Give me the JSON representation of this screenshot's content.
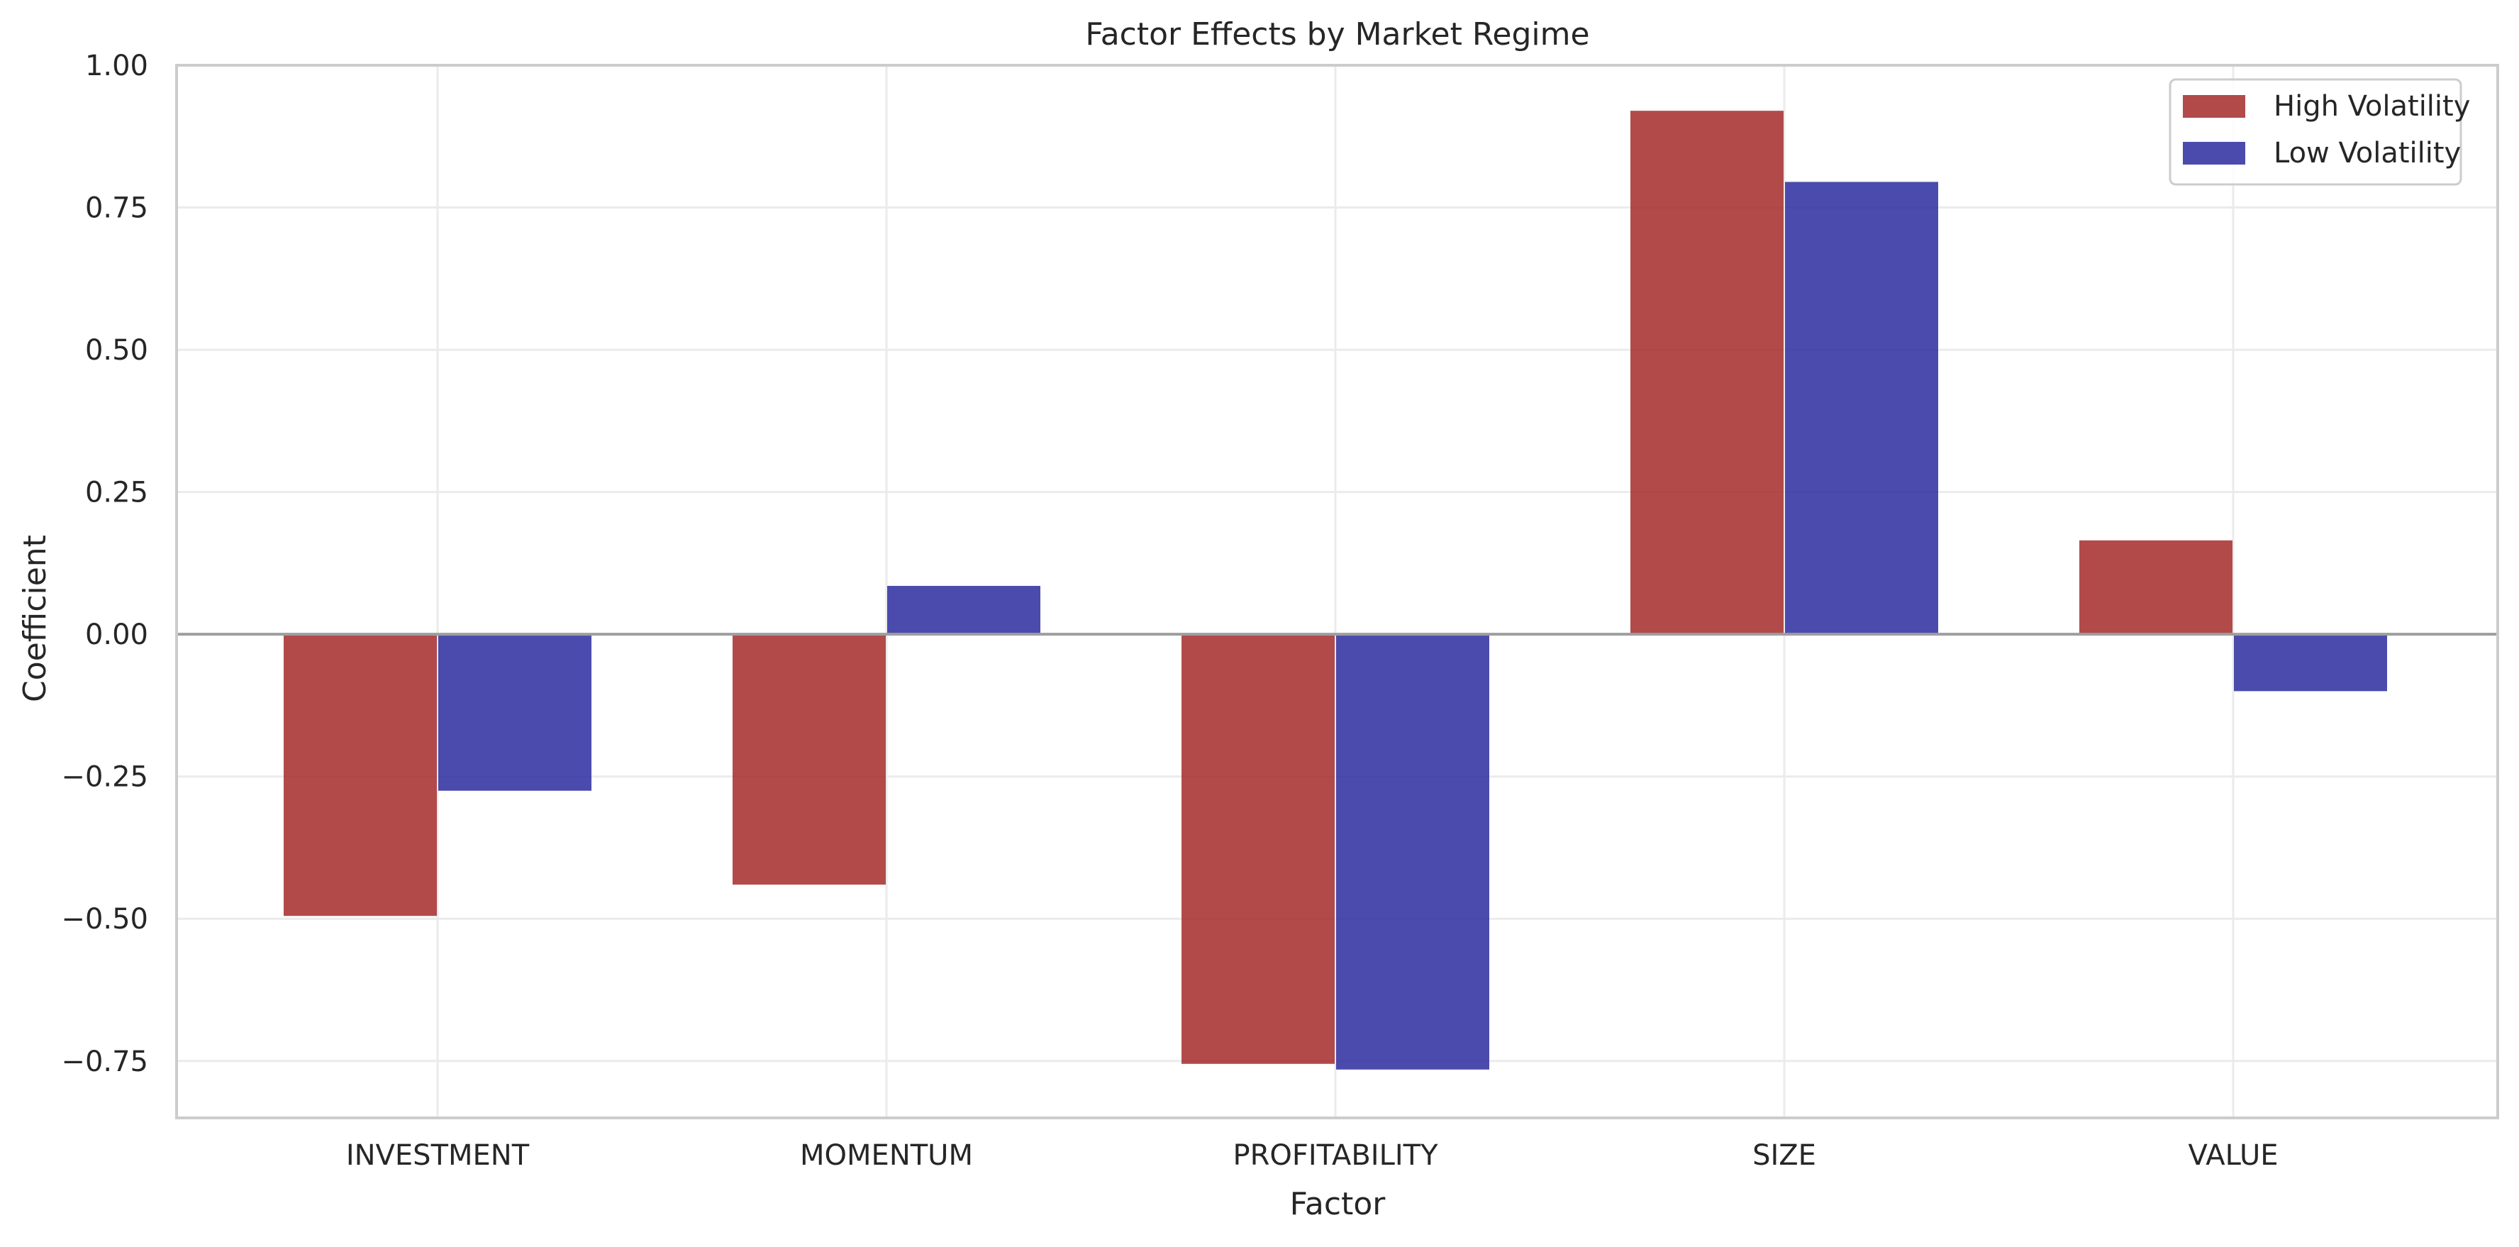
{
  "chart_data": {
    "type": "bar",
    "title": "Factor Effects by Market Regime",
    "xlabel": "Factor",
    "ylabel": "Coefficient",
    "categories": [
      "INVESTMENT",
      "MOMENTUM",
      "PROFITABILITY",
      "SIZE",
      "VALUE"
    ],
    "series": [
      {
        "name": "High Volatility",
        "color": "#a52a2a",
        "values": [
          -0.495,
          -0.44,
          -0.755,
          0.92,
          0.165
        ]
      },
      {
        "name": "Low Volatility",
        "color": "#2b2b9f",
        "values": [
          -0.275,
          0.085,
          -0.765,
          0.795,
          -0.1
        ]
      }
    ],
    "ylim": [
      -0.85,
      1.0
    ],
    "yticks": [
      -0.75,
      -0.5,
      -0.25,
      0.0,
      0.25,
      0.5,
      0.75,
      1.0
    ],
    "ytick_labels": [
      "−0.75",
      "−0.50",
      "−0.25",
      "0.00",
      "0.25",
      "0.50",
      "0.75",
      "1.00"
    ],
    "grid": true,
    "legend_position": "top-right"
  }
}
